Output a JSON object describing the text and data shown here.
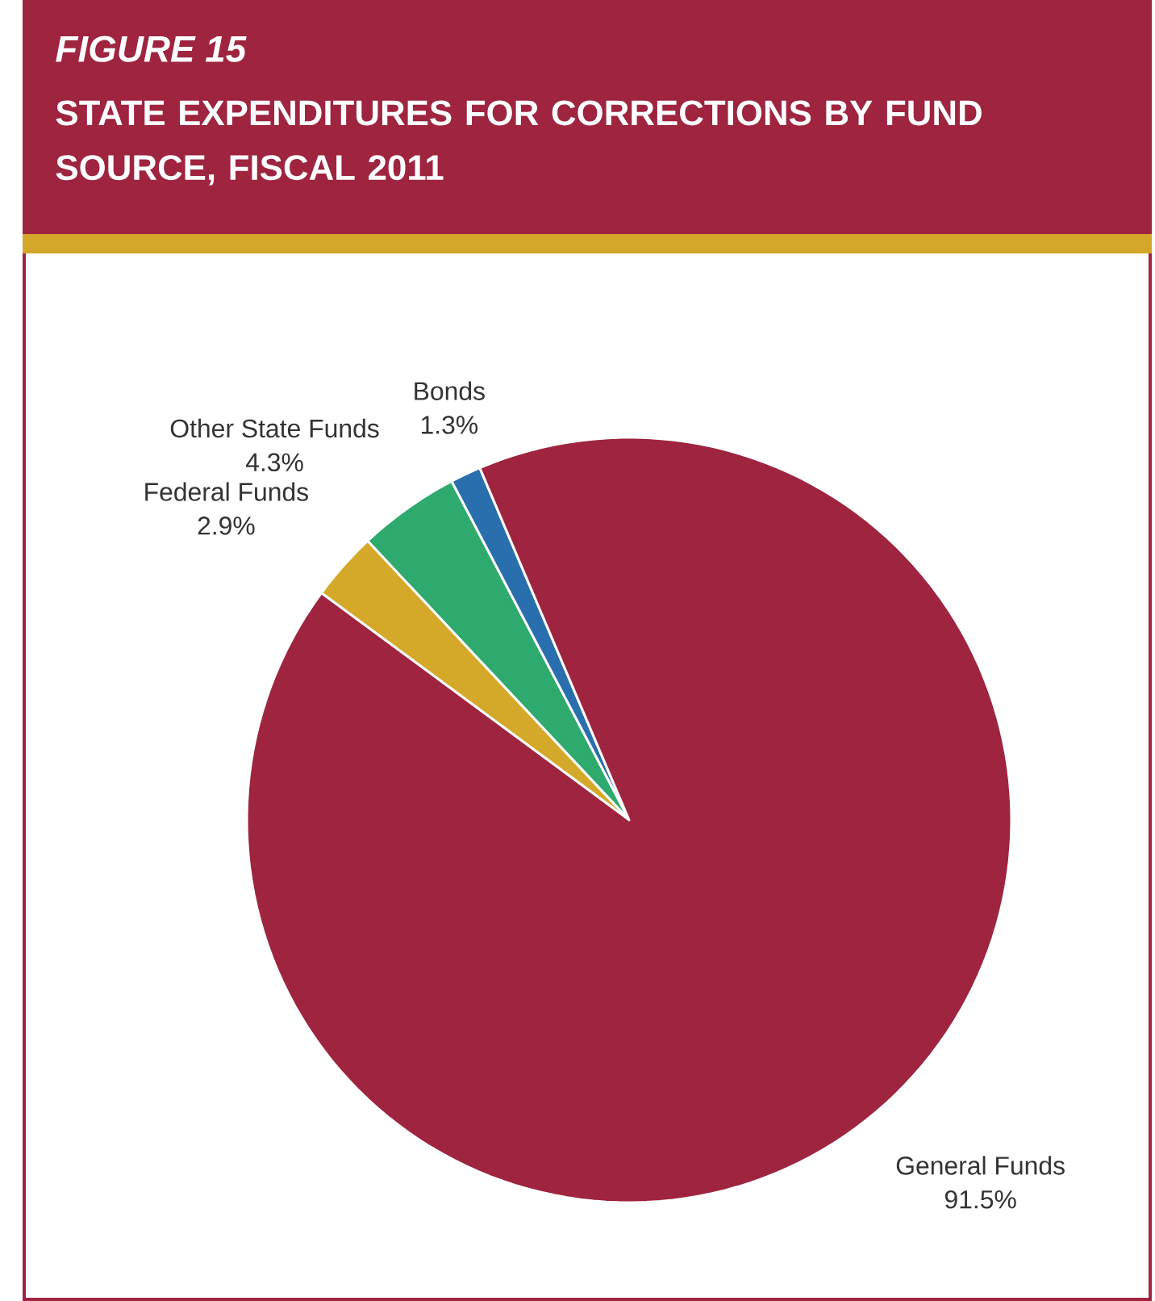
{
  "chart_data": {
    "type": "pie",
    "title": "FIGURE 15",
    "subtitle": "STATE EXPENDITURES FOR CORRECTIONS BY FUND SOURCE, FISCAL 2011",
    "categories": [
      "Bonds",
      "Other State Funds",
      "Federal Funds",
      "General Funds"
    ],
    "values": [
      1.3,
      4.3,
      2.9,
      91.5
    ],
    "value_labels": [
      "1.3%",
      "4.3%",
      "2.9%",
      "91.5%"
    ],
    "colors": [
      "#2a6fad",
      "#2eaa6e",
      "#d4a92a",
      "#9e2440"
    ]
  }
}
